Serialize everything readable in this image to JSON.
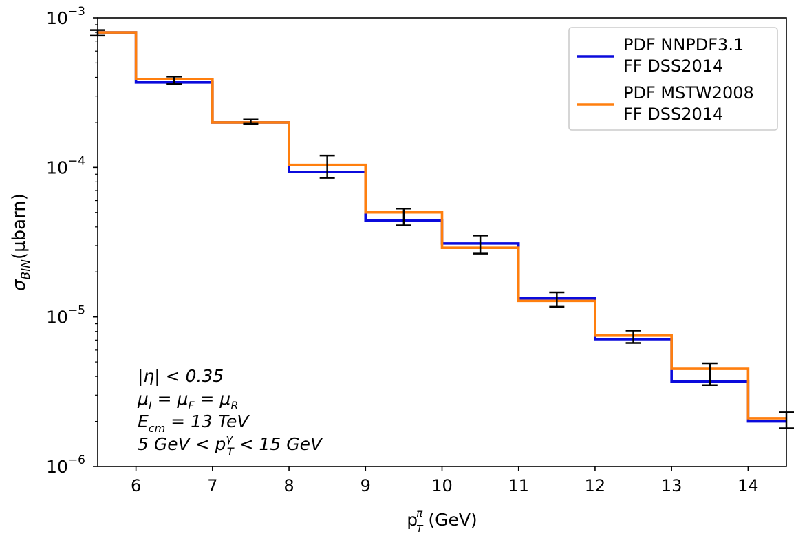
{
  "chart_data": {
    "type": "line",
    "subtype": "step-histogram",
    "title": "",
    "xlabel": "p",
    "xlabel_sup": "π",
    "xlabel_sub": "T",
    "xlabel_unit": " (GeV)",
    "ylabel_main": "σ",
    "ylabel_sub": "BIN",
    "ylabel_unit": "(μbarn)",
    "xlim": [
      5.5,
      14.5
    ],
    "ylim": [
      1e-06,
      0.001
    ],
    "yscale": "log",
    "grid": false,
    "legend_position": "top-right",
    "x_ticks": [
      "6",
      "7",
      "8",
      "9",
      "10",
      "11",
      "12",
      "13",
      "14"
    ],
    "y_ticks": [
      {
        "base": "10",
        "exp": "−3",
        "value": 0.001
      },
      {
        "base": "10",
        "exp": "−4",
        "value": 0.0001
      },
      {
        "base": "10",
        "exp": "−5",
        "value": 1e-05
      },
      {
        "base": "10",
        "exp": "−6",
        "value": 1e-06
      }
    ],
    "bin_edges": [
      5.5,
      6,
      7,
      8,
      9,
      10,
      11,
      12,
      13,
      14,
      14.5
    ],
    "series": [
      {
        "name_line1": "PDF NNPDF3.1",
        "name_line2": "FF DSS2014",
        "color": "#0b0bdc",
        "values": [
          0.0008,
          0.00037,
          0.0002,
          9.3e-05,
          4.4e-05,
          3.1e-05,
          1.33e-05,
          7.1e-06,
          3.7e-06,
          2e-06
        ]
      },
      {
        "name_line1": "PDF MSTW2008",
        "name_line2": "FF DSS2014",
        "color": "#ff7f0e",
        "values": [
          0.0008,
          0.00039,
          0.0002,
          0.000104,
          5e-05,
          2.9e-05,
          1.28e-05,
          7.5e-06,
          4.5e-06,
          2.1e-06
        ]
      }
    ],
    "error_bars": [
      {
        "x": 5.5,
        "low": 0.00076,
        "high": 0.00083
      },
      {
        "x": 6.5,
        "low": 0.00036,
        "high": 0.000405
      },
      {
        "x": 7.5,
        "low": 0.000196,
        "high": 0.000209
      },
      {
        "x": 8.5,
        "low": 8.5e-05,
        "high": 0.00012
      },
      {
        "x": 9.5,
        "low": 4.1e-05,
        "high": 5.3e-05
      },
      {
        "x": 10.5,
        "low": 2.65e-05,
        "high": 3.5e-05
      },
      {
        "x": 11.5,
        "low": 1.17e-05,
        "high": 1.46e-05
      },
      {
        "x": 12.5,
        "low": 6.7e-06,
        "high": 8.1e-06
      },
      {
        "x": 13.5,
        "low": 3.5e-06,
        "high": 4.9e-06
      },
      {
        "x": 14.5,
        "low": 1.8e-06,
        "high": 2.3e-06
      }
    ],
    "annotations": [
      {
        "parts": [
          {
            "t": "|η| < 0.35"
          }
        ]
      },
      {
        "parts": [
          {
            "t": "μ"
          },
          {
            "t": "I",
            "sub": true
          },
          {
            "t": " = μ"
          },
          {
            "t": "F",
            "sub": true
          },
          {
            "t": " = μ"
          },
          {
            "t": "R",
            "sub": true
          }
        ]
      },
      {
        "parts": [
          {
            "t": "E"
          },
          {
            "t": "cm",
            "sub": true
          },
          {
            "t": " = 13 TeV"
          }
        ]
      },
      {
        "parts": [
          {
            "t": "5 GeV < p"
          },
          {
            "t": "T",
            "subsup": "γ"
          },
          {
            "t": " < 15 GeV"
          }
        ]
      }
    ]
  }
}
